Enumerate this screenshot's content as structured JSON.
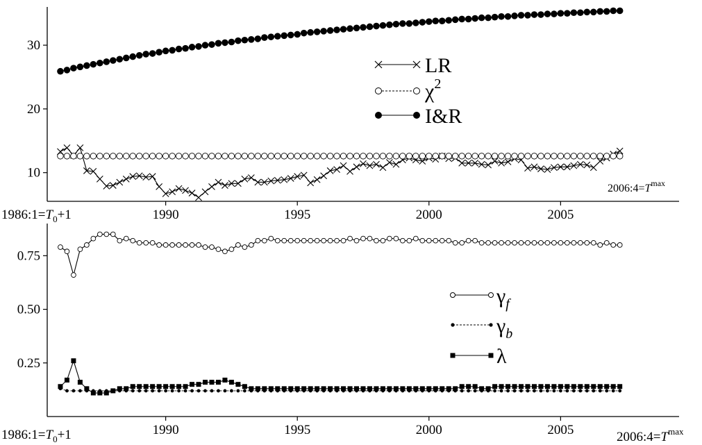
{
  "chart_data": [
    {
      "type": "line",
      "x_start": 1986.0,
      "x_step": 0.25,
      "xlim": [
        1985.5,
        2009.5
      ],
      "ylim": [
        5.5,
        36
      ],
      "y_ticks": [
        10,
        20,
        30
      ],
      "y_tick_labels": [
        "10",
        "20",
        "30"
      ],
      "x_ticks": [
        1990,
        1995,
        2000,
        2005
      ],
      "x_tick_labels": [
        "1990",
        "1995",
        "2000",
        "2005"
      ],
      "x_start_label": "1986:1=T0+1",
      "x_end_label": "2006:4=Tmax",
      "legend_position": "upper-middle",
      "series": [
        {
          "name": "LR",
          "marker": "cross",
          "line": "solid",
          "values": [
            13.3,
            13.9,
            12.7,
            13.9,
            10.3,
            10.2,
            9.0,
            7.9,
            8.0,
            8.5,
            9.0,
            9.4,
            9.5,
            9.3,
            9.4,
            7.8,
            6.7,
            7.0,
            7.5,
            7.2,
            6.8,
            6.1,
            7.0,
            7.8,
            8.5,
            8.0,
            8.3,
            8.3,
            9.0,
            9.2,
            8.5,
            8.5,
            8.7,
            8.8,
            8.9,
            9.1,
            9.4,
            9.6,
            8.4,
            8.9,
            9.5,
            10.3,
            10.5,
            11.1,
            10.2,
            10.9,
            11.4,
            11.1,
            11.3,
            10.8,
            11.6,
            11.3,
            12.0,
            12.3,
            12.0,
            11.8,
            12.3,
            12.1,
            12.6,
            12.2,
            12.3,
            11.5,
            11.5,
            11.5,
            11.3,
            11.2,
            11.8,
            11.5,
            11.7,
            12.2,
            12.0,
            10.7,
            10.9,
            10.6,
            10.5,
            10.8,
            10.9,
            10.9,
            11.1,
            11.3,
            11.2,
            10.8,
            11.8,
            12.3,
            12.9,
            13.4
          ]
        },
        {
          "name": "χ2",
          "marker": "open-circle",
          "line": "dashed",
          "values": [
            12.6,
            12.6,
            12.6,
            12.6,
            12.6,
            12.6,
            12.6,
            12.6,
            12.6,
            12.6,
            12.6,
            12.6,
            12.6,
            12.6,
            12.6,
            12.6,
            12.6,
            12.6,
            12.6,
            12.6,
            12.6,
            12.6,
            12.6,
            12.6,
            12.6,
            12.6,
            12.6,
            12.6,
            12.6,
            12.6,
            12.6,
            12.6,
            12.6,
            12.6,
            12.6,
            12.6,
            12.6,
            12.6,
            12.6,
            12.6,
            12.6,
            12.6,
            12.6,
            12.6,
            12.6,
            12.6,
            12.6,
            12.6,
            12.6,
            12.6,
            12.6,
            12.6,
            12.6,
            12.6,
            12.6,
            12.6,
            12.6,
            12.6,
            12.6,
            12.6,
            12.6,
            12.6,
            12.6,
            12.6,
            12.6,
            12.6,
            12.6,
            12.6,
            12.6,
            12.6,
            12.6,
            12.6,
            12.6,
            12.6,
            12.6,
            12.6,
            12.6,
            12.6,
            12.6,
            12.6,
            12.6,
            12.6,
            12.6,
            12.6,
            12.6,
            12.6
          ]
        },
        {
          "name": "I&R",
          "marker": "filled-circle",
          "line": "solid",
          "values": [
            25.9,
            26.1,
            26.4,
            26.6,
            26.8,
            27.0,
            27.2,
            27.4,
            27.6,
            27.8,
            28.0,
            28.2,
            28.4,
            28.6,
            28.7,
            28.9,
            29.1,
            29.2,
            29.4,
            29.5,
            29.7,
            29.8,
            30.0,
            30.1,
            30.3,
            30.4,
            30.5,
            30.7,
            30.8,
            30.9,
            31.0,
            31.2,
            31.3,
            31.4,
            31.5,
            31.6,
            31.7,
            31.9,
            32.0,
            32.1,
            32.2,
            32.3,
            32.4,
            32.5,
            32.6,
            32.7,
            32.8,
            32.9,
            33.0,
            33.1,
            33.2,
            33.3,
            33.4,
            33.4,
            33.5,
            33.6,
            33.7,
            33.8,
            33.8,
            33.9,
            34.0,
            34.1,
            34.1,
            34.2,
            34.3,
            34.3,
            34.4,
            34.5,
            34.5,
            34.6,
            34.7,
            34.7,
            34.8,
            34.8,
            34.9,
            34.9,
            35.0,
            35.0,
            35.1,
            35.1,
            35.2,
            35.2,
            35.3,
            35.3,
            35.4,
            35.4
          ]
        }
      ]
    },
    {
      "type": "line",
      "x_start": 1986.0,
      "x_step": 0.25,
      "xlim": [
        1985.5,
        2009.5
      ],
      "ylim": [
        0.0,
        0.9
      ],
      "y_ticks": [
        0.25,
        0.5,
        0.75
      ],
      "y_tick_labels": [
        "0.25",
        "0.50",
        "0.75"
      ],
      "x_ticks": [
        1990,
        1995,
        2000,
        2005
      ],
      "x_tick_labels": [
        "1990",
        "1995",
        "2000",
        "2005"
      ],
      "x_start_label": "1986:1=T0+1",
      "x_end_label": "2006:4=Tmax",
      "legend_position": "right-middle",
      "series": [
        {
          "name": "γf",
          "marker": "open-circle",
          "line": "solid",
          "values": [
            0.79,
            0.77,
            0.66,
            0.78,
            0.8,
            0.83,
            0.85,
            0.85,
            0.85,
            0.82,
            0.83,
            0.82,
            0.81,
            0.81,
            0.81,
            0.8,
            0.8,
            0.8,
            0.8,
            0.8,
            0.8,
            0.8,
            0.79,
            0.79,
            0.78,
            0.77,
            0.78,
            0.8,
            0.79,
            0.8,
            0.82,
            0.82,
            0.83,
            0.82,
            0.82,
            0.82,
            0.82,
            0.82,
            0.82,
            0.82,
            0.82,
            0.82,
            0.82,
            0.82,
            0.83,
            0.82,
            0.83,
            0.83,
            0.82,
            0.82,
            0.83,
            0.83,
            0.82,
            0.82,
            0.83,
            0.82,
            0.82,
            0.82,
            0.82,
            0.82,
            0.81,
            0.81,
            0.82,
            0.82,
            0.81,
            0.81,
            0.81,
            0.81,
            0.81,
            0.81,
            0.81,
            0.81,
            0.81,
            0.81,
            0.81,
            0.81,
            0.81,
            0.81,
            0.81,
            0.81,
            0.81,
            0.81,
            0.8,
            0.81,
            0.8,
            0.8
          ]
        },
        {
          "name": "γb",
          "marker": "small-filled-circle",
          "line": "dashed",
          "values": [
            0.13,
            0.12,
            0.12,
            0.12,
            0.12,
            0.12,
            0.12,
            0.12,
            0.12,
            0.12,
            0.12,
            0.12,
            0.12,
            0.12,
            0.12,
            0.12,
            0.12,
            0.12,
            0.12,
            0.12,
            0.12,
            0.12,
            0.12,
            0.12,
            0.12,
            0.12,
            0.12,
            0.12,
            0.12,
            0.12,
            0.12,
            0.12,
            0.12,
            0.12,
            0.12,
            0.12,
            0.12,
            0.12,
            0.12,
            0.12,
            0.12,
            0.12,
            0.12,
            0.12,
            0.12,
            0.12,
            0.12,
            0.12,
            0.12,
            0.12,
            0.12,
            0.12,
            0.12,
            0.12,
            0.12,
            0.12,
            0.12,
            0.12,
            0.12,
            0.12,
            0.12,
            0.12,
            0.12,
            0.12,
            0.12,
            0.12,
            0.12,
            0.12,
            0.12,
            0.12,
            0.12,
            0.12,
            0.12,
            0.12,
            0.12,
            0.12,
            0.12,
            0.12,
            0.12,
            0.12,
            0.12,
            0.12,
            0.12,
            0.12,
            0.12,
            0.12
          ]
        },
        {
          "name": "λ",
          "marker": "filled-square",
          "line": "solid",
          "values": [
            0.14,
            0.17,
            0.26,
            0.16,
            0.13,
            0.11,
            0.11,
            0.11,
            0.12,
            0.13,
            0.13,
            0.14,
            0.14,
            0.14,
            0.14,
            0.14,
            0.14,
            0.14,
            0.14,
            0.14,
            0.15,
            0.15,
            0.16,
            0.16,
            0.16,
            0.17,
            0.16,
            0.15,
            0.14,
            0.13,
            0.13,
            0.13,
            0.13,
            0.13,
            0.13,
            0.13,
            0.13,
            0.13,
            0.13,
            0.13,
            0.13,
            0.13,
            0.13,
            0.13,
            0.13,
            0.13,
            0.13,
            0.13,
            0.13,
            0.13,
            0.13,
            0.13,
            0.13,
            0.13,
            0.13,
            0.13,
            0.13,
            0.13,
            0.13,
            0.13,
            0.13,
            0.14,
            0.14,
            0.14,
            0.13,
            0.13,
            0.14,
            0.14,
            0.14,
            0.14,
            0.14,
            0.14,
            0.14,
            0.14,
            0.14,
            0.14,
            0.14,
            0.14,
            0.14,
            0.14,
            0.14,
            0.14,
            0.14,
            0.14,
            0.14,
            0.14
          ]
        }
      ]
    }
  ]
}
